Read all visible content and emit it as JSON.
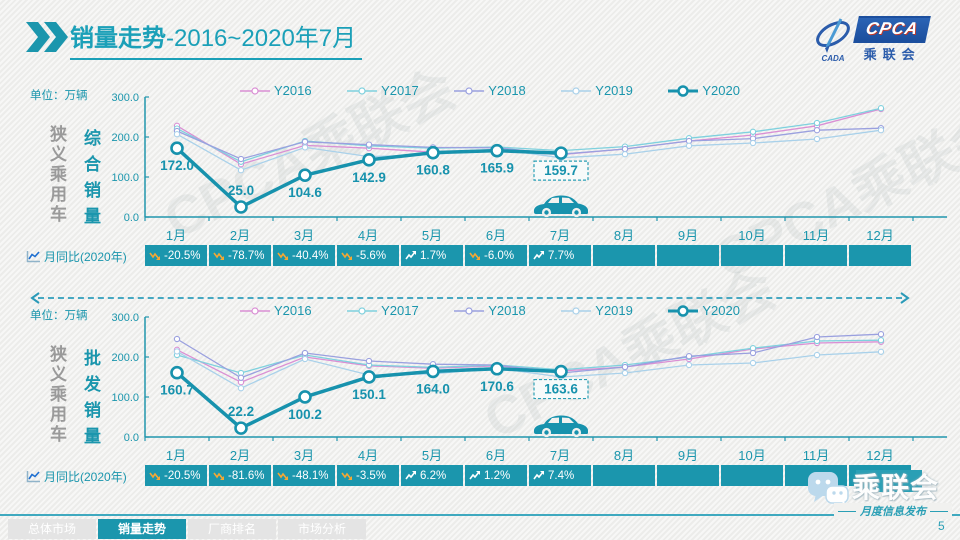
{
  "page": {
    "title_main": "销量走势",
    "title_suffix": "-2016~2020年7月",
    "page_number": "5"
  },
  "logo": {
    "cpca": "CPCA",
    "cada": "CADA",
    "name": "乘联会"
  },
  "badge": {
    "name": "乘联会",
    "tagline": "月度信息发布"
  },
  "watermark": "CPCA乘联会",
  "footer_tabs": [
    {
      "label": "总体市场",
      "active": false
    },
    {
      "label": "销量走势",
      "active": true
    },
    {
      "label": "厂商排名",
      "active": false
    },
    {
      "label": "市场分析",
      "active": false
    }
  ],
  "colors": {
    "teal": "#1b96ad",
    "emphasis": "#1792ad",
    "cell_bg": "#1b96ad",
    "neg_icon": "#f5a833",
    "pos_icon": "#ffffff",
    "axis": "#2196ad",
    "panel_bg": "#f1f1ef",
    "label_box": "#2a9fb5"
  },
  "chart_data": [
    {
      "type": "line",
      "title": "狭义乘用车综合销量走势",
      "unit_label": "单位：万辆",
      "group_label": "狭义乘用车",
      "measure_label": "综合销量",
      "ylabel": "万辆",
      "ylim": [
        0,
        300
      ],
      "yticks": [
        "300.0",
        "200.0",
        "100.0",
        "0.0"
      ],
      "grid": false,
      "legend_position": "top",
      "categories": [
        "1月",
        "2月",
        "3月",
        "4月",
        "5月",
        "6月",
        "7月",
        "8月",
        "9月",
        "10月",
        "11月",
        "12月"
      ],
      "series": [
        {
          "name": "Y2016",
          "color": "#da8fd4",
          "values": [
            228,
            132,
            179,
            172,
            162,
            166,
            156,
            170,
            190,
            205,
            228,
            270
          ]
        },
        {
          "name": "Y2017",
          "color": "#7fd1de",
          "values": [
            221,
            138,
            190,
            178,
            172,
            175,
            166,
            176,
            197,
            213,
            235,
            272
          ]
        },
        {
          "name": "Y2018",
          "color": "#9aa0df",
          "values": [
            215,
            145,
            188,
            181,
            174,
            173,
            157,
            170,
            190,
            196,
            217,
            222
          ]
        },
        {
          "name": "Y2019",
          "color": "#a9d1ea",
          "values": [
            207,
            117,
            174,
            151,
            156,
            170,
            148,
            157,
            178,
            185,
            195,
            217
          ]
        },
        {
          "name": "Y2020",
          "color": "#1792ad",
          "values": [
            172.0,
            25.0,
            104.6,
            142.9,
            160.8,
            165.9,
            159.7
          ],
          "emphasis": true,
          "labeled": true,
          "box_last": true
        }
      ],
      "yoy": {
        "label": "月同比(2020年)",
        "values": [
          "-20.5%",
          "-78.7%",
          "-40.4%",
          "-5.6%",
          "1.7%",
          "-6.0%",
          "7.7%",
          "",
          "",
          "",
          "",
          ""
        ]
      }
    },
    {
      "type": "line",
      "title": "狭义乘用车批发销量走势",
      "unit_label": "单位：万辆",
      "group_label": "狭义乘用车",
      "measure_label": "批发销量",
      "ylabel": "万辆",
      "ylim": [
        0,
        300
      ],
      "yticks": [
        "300.0",
        "200.0",
        "100.0",
        "0.0"
      ],
      "grid": false,
      "legend_position": "top",
      "categories": [
        "1月",
        "2月",
        "3月",
        "4月",
        "5月",
        "6月",
        "7月",
        "8月",
        "9月",
        "10月",
        "11月",
        "12月"
      ],
      "series": [
        {
          "name": "Y2016",
          "color": "#da8fd4",
          "values": [
            218,
            137,
            200,
            178,
            172,
            178,
            165,
            175,
            195,
            220,
            235,
            238
          ]
        },
        {
          "name": "Y2017",
          "color": "#7fd1de",
          "values": [
            205,
            160,
            205,
            180,
            174,
            180,
            168,
            180,
            200,
            222,
            240,
            242
          ]
        },
        {
          "name": "Y2018",
          "color": "#9aa0df",
          "values": [
            245,
            148,
            210,
            190,
            182,
            180,
            160,
            175,
            202,
            210,
            250,
            257
          ]
        },
        {
          "name": "Y2019",
          "color": "#a9d1ea",
          "values": [
            214,
            122,
            195,
            155,
            158,
            172,
            150,
            160,
            180,
            185,
            205,
            213
          ]
        },
        {
          "name": "Y2020",
          "color": "#1792ad",
          "values": [
            160.7,
            22.2,
            100.2,
            150.1,
            164.0,
            170.6,
            163.6
          ],
          "emphasis": true,
          "labeled": true,
          "box_last": true
        }
      ],
      "yoy": {
        "label": "月同比(2020年)",
        "values": [
          "-20.5%",
          "-81.6%",
          "-48.1%",
          "-3.5%",
          "6.2%",
          "1.2%",
          "7.4%",
          "",
          "",
          "",
          "",
          ""
        ]
      }
    }
  ]
}
